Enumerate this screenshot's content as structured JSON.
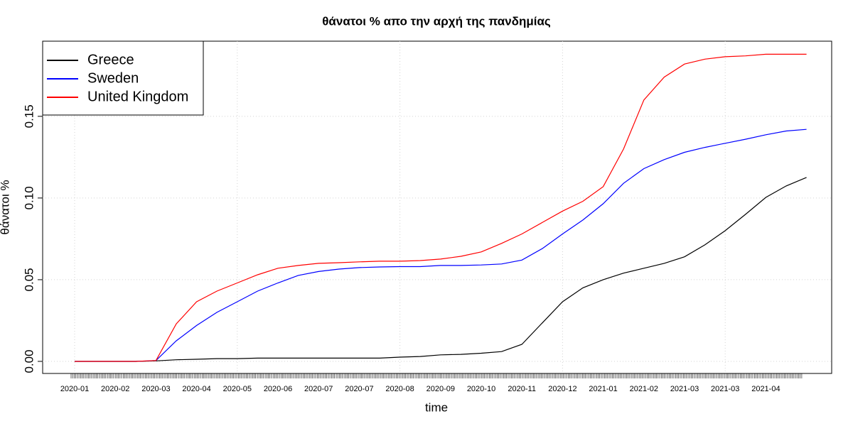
{
  "chart_data": {
    "type": "line",
    "title": "θάνατοι % απο την αρχή της πανδημίας",
    "xlabel": "time",
    "ylabel": "θάνατοι %",
    "categories": [
      "2020-01",
      null,
      "2020-02",
      null,
      "2020-03",
      null,
      "2020-04",
      null,
      "2020-05",
      null,
      "2020-06",
      null,
      "2020-07",
      null,
      "2020-07",
      null,
      "2020-08",
      null,
      "2020-09",
      null,
      "2020-10",
      null,
      "2020-11",
      null,
      "2020-12",
      null,
      "2021-01",
      null,
      "2021-02",
      null,
      "2021-03",
      null,
      "2021-03",
      null,
      "2021-04",
      null,
      null
    ],
    "series": [
      {
        "name": "Greece",
        "color": "#000000",
        "values": [
          0,
          0,
          0,
          0,
          0.0003,
          0.001,
          0.0013,
          0.0017,
          0.0017,
          0.002,
          0.002,
          0.002,
          0.002,
          0.002,
          0.002,
          0.002,
          0.0026,
          0.003,
          0.004,
          0.0043,
          0.005,
          0.006,
          0.0104,
          0.0235,
          0.0365,
          0.045,
          0.05,
          0.054,
          0.057,
          0.06,
          0.064,
          0.0713,
          0.08,
          0.09,
          0.1004,
          0.1074,
          0.1126
        ]
      },
      {
        "name": "Sweden",
        "color": "#0000ff",
        "values": [
          0,
          0,
          0,
          0,
          0.0005,
          0.0126,
          0.022,
          0.03,
          0.0365,
          0.043,
          0.048,
          0.0526,
          0.055,
          0.0565,
          0.0574,
          0.0578,
          0.058,
          0.058,
          0.0587,
          0.0587,
          0.059,
          0.0596,
          0.062,
          0.069,
          0.078,
          0.0865,
          0.0965,
          0.109,
          0.118,
          0.1235,
          0.128,
          0.131,
          0.1335,
          0.136,
          0.1387,
          0.141,
          0.142
        ]
      },
      {
        "name": "United Kingdom",
        "color": "#ff0000",
        "values": [
          0,
          0,
          0,
          0,
          0.0005,
          0.023,
          0.0365,
          0.043,
          0.048,
          0.053,
          0.057,
          0.0587,
          0.06,
          0.0604,
          0.0609,
          0.0613,
          0.0613,
          0.0617,
          0.0626,
          0.0643,
          0.067,
          0.0722,
          0.078,
          0.085,
          0.092,
          0.098,
          0.107,
          0.13,
          0.16,
          0.174,
          0.182,
          0.185,
          0.1865,
          0.187,
          0.188,
          0.188,
          0.188
        ]
      }
    ],
    "ylim": [
      -0.0074,
      0.196
    ],
    "yticks": [
      {
        "value": 0,
        "label": "0.00"
      },
      {
        "value": 0.05,
        "label": "0.05"
      },
      {
        "value": 0.1,
        "label": "0.10"
      },
      {
        "value": 0.15,
        "label": "0.15"
      }
    ],
    "grid": true,
    "legend": "top-left"
  }
}
